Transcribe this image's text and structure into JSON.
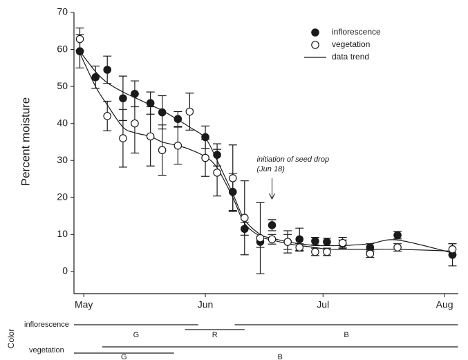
{
  "chart_data": {
    "type": "scatter",
    "ylabel": "Percent moisture",
    "xlim": [
      -2.5,
      95.5
    ],
    "xticks": [
      {
        "value": 0,
        "label": "May"
      },
      {
        "value": 31,
        "label": "Jun"
      },
      {
        "value": 61,
        "label": "Jul"
      },
      {
        "value": 92,
        "label": "Aug"
      }
    ],
    "ylim": [
      -6,
      70
    ],
    "yticks": [
      0,
      10,
      20,
      30,
      40,
      50,
      60,
      70
    ],
    "legend": "upper right",
    "series": [
      {
        "name": "inflorescence",
        "color": "#1a1a1a",
        "marker": "filled",
        "x": [
          -1,
          3,
          6,
          10,
          13,
          17,
          20,
          24,
          31,
          34,
          38,
          41,
          45,
          48,
          52,
          55,
          59,
          62,
          66,
          73,
          80,
          94
        ],
        "values": [
          59.5,
          52.5,
          54.5,
          46.8,
          48,
          45.5,
          43,
          41.2,
          36.3,
          31.5,
          21.5,
          11.5,
          8,
          12.5,
          8,
          8.7,
          8.2,
          8,
          7.5,
          6.5,
          9.8,
          4.5
        ],
        "errors": [
          4.5,
          3,
          3.7,
          6,
          3.5,
          3,
          4.5,
          2,
          3,
          3,
          5,
          1.7,
          1.5,
          1.5,
          2,
          3,
          1,
          1,
          1,
          1,
          1,
          3
        ]
      },
      {
        "name": "vegetation",
        "color": "#1a1a1a",
        "marker": "open",
        "x": [
          -1,
          6,
          10,
          13,
          17,
          20,
          24,
          27,
          31,
          34,
          38,
          41,
          45,
          48,
          52,
          55,
          59,
          62,
          66,
          73,
          80,
          94
        ],
        "values": [
          62.8,
          42,
          36,
          40,
          36.5,
          32.8,
          34,
          43.2,
          30.7,
          26.7,
          25.2,
          14.5,
          9,
          8.7,
          8,
          6.5,
          5.3,
          5.3,
          7.7,
          4.8,
          6.5,
          6
        ],
        "errors": [
          3,
          4,
          7.8,
          8,
          8,
          6.8,
          5,
          5,
          5,
          6.3,
          9,
          10,
          9.6,
          1.3,
          3,
          1,
          1,
          1,
          1.5,
          1,
          1,
          1.5
        ]
      }
    ],
    "trend": {
      "name": "data trend",
      "color": "#1a1a1a",
      "x": [
        -1,
        3,
        6,
        10,
        13,
        17,
        20,
        24,
        27,
        31,
        34,
        38,
        41,
        45,
        48,
        52,
        55,
        59,
        62,
        66,
        73,
        80,
        94
      ],
      "lines": [
        [
          59.5,
          54,
          51,
          48.5,
          47,
          45,
          43.5,
          41,
          39,
          36,
          30,
          21,
          14,
          10,
          9,
          8,
          7.5,
          7,
          7,
          7,
          7.5,
          8.5,
          5
        ],
        [
          59,
          50,
          45,
          39,
          37.5,
          36.5,
          35,
          34,
          33,
          31,
          28,
          20,
          13,
          9.5,
          8.5,
          7.5,
          7,
          6.5,
          6,
          6,
          6,
          6,
          5.5
        ]
      ]
    },
    "annotation": {
      "lines": [
        "initiation of seed drop",
        "(Jun 18)"
      ],
      "x": 48
    },
    "color_panel": {
      "title": "Color",
      "rows": [
        {
          "label": "inflorescence",
          "stages": [
            {
              "label": "G",
              "start": -2.5,
              "end": 29.2
            },
            {
              "label": "R",
              "start": 25.8,
              "end": 41
            },
            {
              "label": "B",
              "start": 38.5,
              "end": 95.4
            }
          ]
        },
        {
          "label": "vegetation",
          "stages": [
            {
              "label": "G",
              "start": -2.5,
              "end": 23
            },
            {
              "label": "B",
              "start": 4.7,
              "end": 95.4
            }
          ]
        }
      ]
    }
  }
}
